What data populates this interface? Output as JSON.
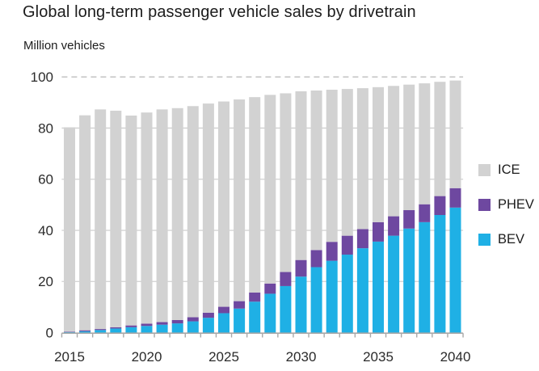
{
  "chart": {
    "title": "Global long-term passenger vehicle sales by drivetrain",
    "unit_label": "Million vehicles"
  },
  "chart_data": {
    "type": "bar",
    "stacked": true,
    "title": "Global long-term passenger vehicle sales by drivetrain",
    "xlabel": "",
    "ylabel": "Million vehicles",
    "ylim": [
      0,
      100
    ],
    "y_ticks": [
      0,
      20,
      40,
      60,
      80,
      100
    ],
    "x_tick_labels": [
      "2015",
      "2020",
      "2025",
      "2030",
      "2035",
      "2040"
    ],
    "grid": "horizontal, top line at 100 dashed",
    "legend_position": "right",
    "categories": [
      2015,
      2016,
      2017,
      2018,
      2019,
      2020,
      2021,
      2022,
      2023,
      2024,
      2025,
      2026,
      2027,
      2028,
      2029,
      2030,
      2031,
      2032,
      2033,
      2034,
      2035,
      2036,
      2037,
      2038,
      2039,
      2040
    ],
    "stack_order_bottom_to_top": [
      "BEV",
      "PHEV",
      "ICE"
    ],
    "series": [
      {
        "name": "ICE",
        "color": "#d2d2d2",
        "values": [
          79.9,
          84.1,
          85.9,
          84.7,
          82.1,
          82.6,
          83.2,
          82.9,
          82.6,
          81.8,
          80.3,
          78.9,
          76.4,
          73.8,
          69.9,
          66.0,
          62.4,
          59.5,
          57.4,
          55.1,
          52.8,
          51.0,
          49.1,
          47.3,
          44.7,
          42.1
        ]
      },
      {
        "name": "PHEV",
        "color": "#6e48a0",
        "values": [
          0.2,
          0.4,
          0.4,
          0.5,
          0.7,
          0.9,
          1.0,
          1.3,
          1.6,
          2.0,
          2.5,
          2.9,
          3.6,
          4.0,
          5.5,
          6.5,
          6.7,
          7.4,
          7.4,
          7.5,
          7.6,
          7.6,
          7.2,
          7.0,
          7.4,
          7.6
        ]
      },
      {
        "name": "BEV",
        "color": "#1fb0e5",
        "values": [
          0.2,
          0.5,
          1.0,
          1.6,
          2.1,
          2.6,
          3.1,
          3.6,
          4.4,
          5.8,
          7.6,
          9.4,
          12.1,
          15.2,
          18.2,
          21.9,
          25.6,
          28.1,
          30.5,
          33.0,
          35.6,
          37.9,
          40.7,
          43.2,
          46.0,
          48.9
        ]
      }
    ]
  }
}
